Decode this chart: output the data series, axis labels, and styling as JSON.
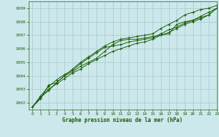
{
  "title": "Graphe pression niveau de la mer (hPa)",
  "bg_color": "#cce8ec",
  "grid_color": "#aacccc",
  "line_color": "#1a5c00",
  "xlim": [
    -0.5,
    23
  ],
  "ylim": [
    1001.5,
    1009.5
  ],
  "yticks": [
    1002,
    1003,
    1004,
    1005,
    1006,
    1007,
    1008,
    1009
  ],
  "xticks": [
    0,
    1,
    2,
    3,
    4,
    5,
    6,
    7,
    8,
    9,
    10,
    11,
    12,
    13,
    14,
    15,
    16,
    17,
    18,
    19,
    20,
    21,
    22,
    23
  ],
  "series": [
    [
      1001.7,
      1002.4,
      1002.9,
      1003.5,
      1004.0,
      1004.3,
      1004.7,
      1005.0,
      1005.3,
      1005.8,
      1006.3,
      1006.6,
      1006.7,
      1006.7,
      1006.8,
      1006.9,
      1007.0,
      1007.1,
      1007.8,
      1008.0,
      1008.1,
      1008.4,
      1008.7,
      1009.0
    ],
    [
      1001.7,
      1002.4,
      1003.0,
      1003.4,
      1003.8,
      1004.2,
      1004.5,
      1004.9,
      1005.2,
      1005.5,
      1005.8,
      1006.0,
      1006.2,
      1006.4,
      1006.5,
      1006.7,
      1007.0,
      1007.2,
      1007.5,
      1007.8,
      1008.0,
      1008.2,
      1008.5,
      1009.0
    ],
    [
      1001.7,
      1002.3,
      1003.3,
      1003.5,
      1004.0,
      1004.5,
      1005.0,
      1005.4,
      1005.8,
      1006.2,
      1006.5,
      1006.7,
      1006.8,
      1006.9,
      1007.0,
      1007.1,
      1007.5,
      1007.8,
      1008.1,
      1008.5,
      1008.7,
      1008.9,
      1009.0,
      1009.2
    ],
    [
      1001.7,
      1002.5,
      1003.2,
      1003.7,
      1004.1,
      1004.4,
      1004.9,
      1005.3,
      1005.7,
      1006.1,
      1006.2,
      1006.3,
      1006.5,
      1006.6,
      1006.7,
      1006.8,
      1007.1,
      1007.4,
      1007.6,
      1007.9,
      1008.1,
      1008.3,
      1008.5,
      1009.0
    ]
  ]
}
